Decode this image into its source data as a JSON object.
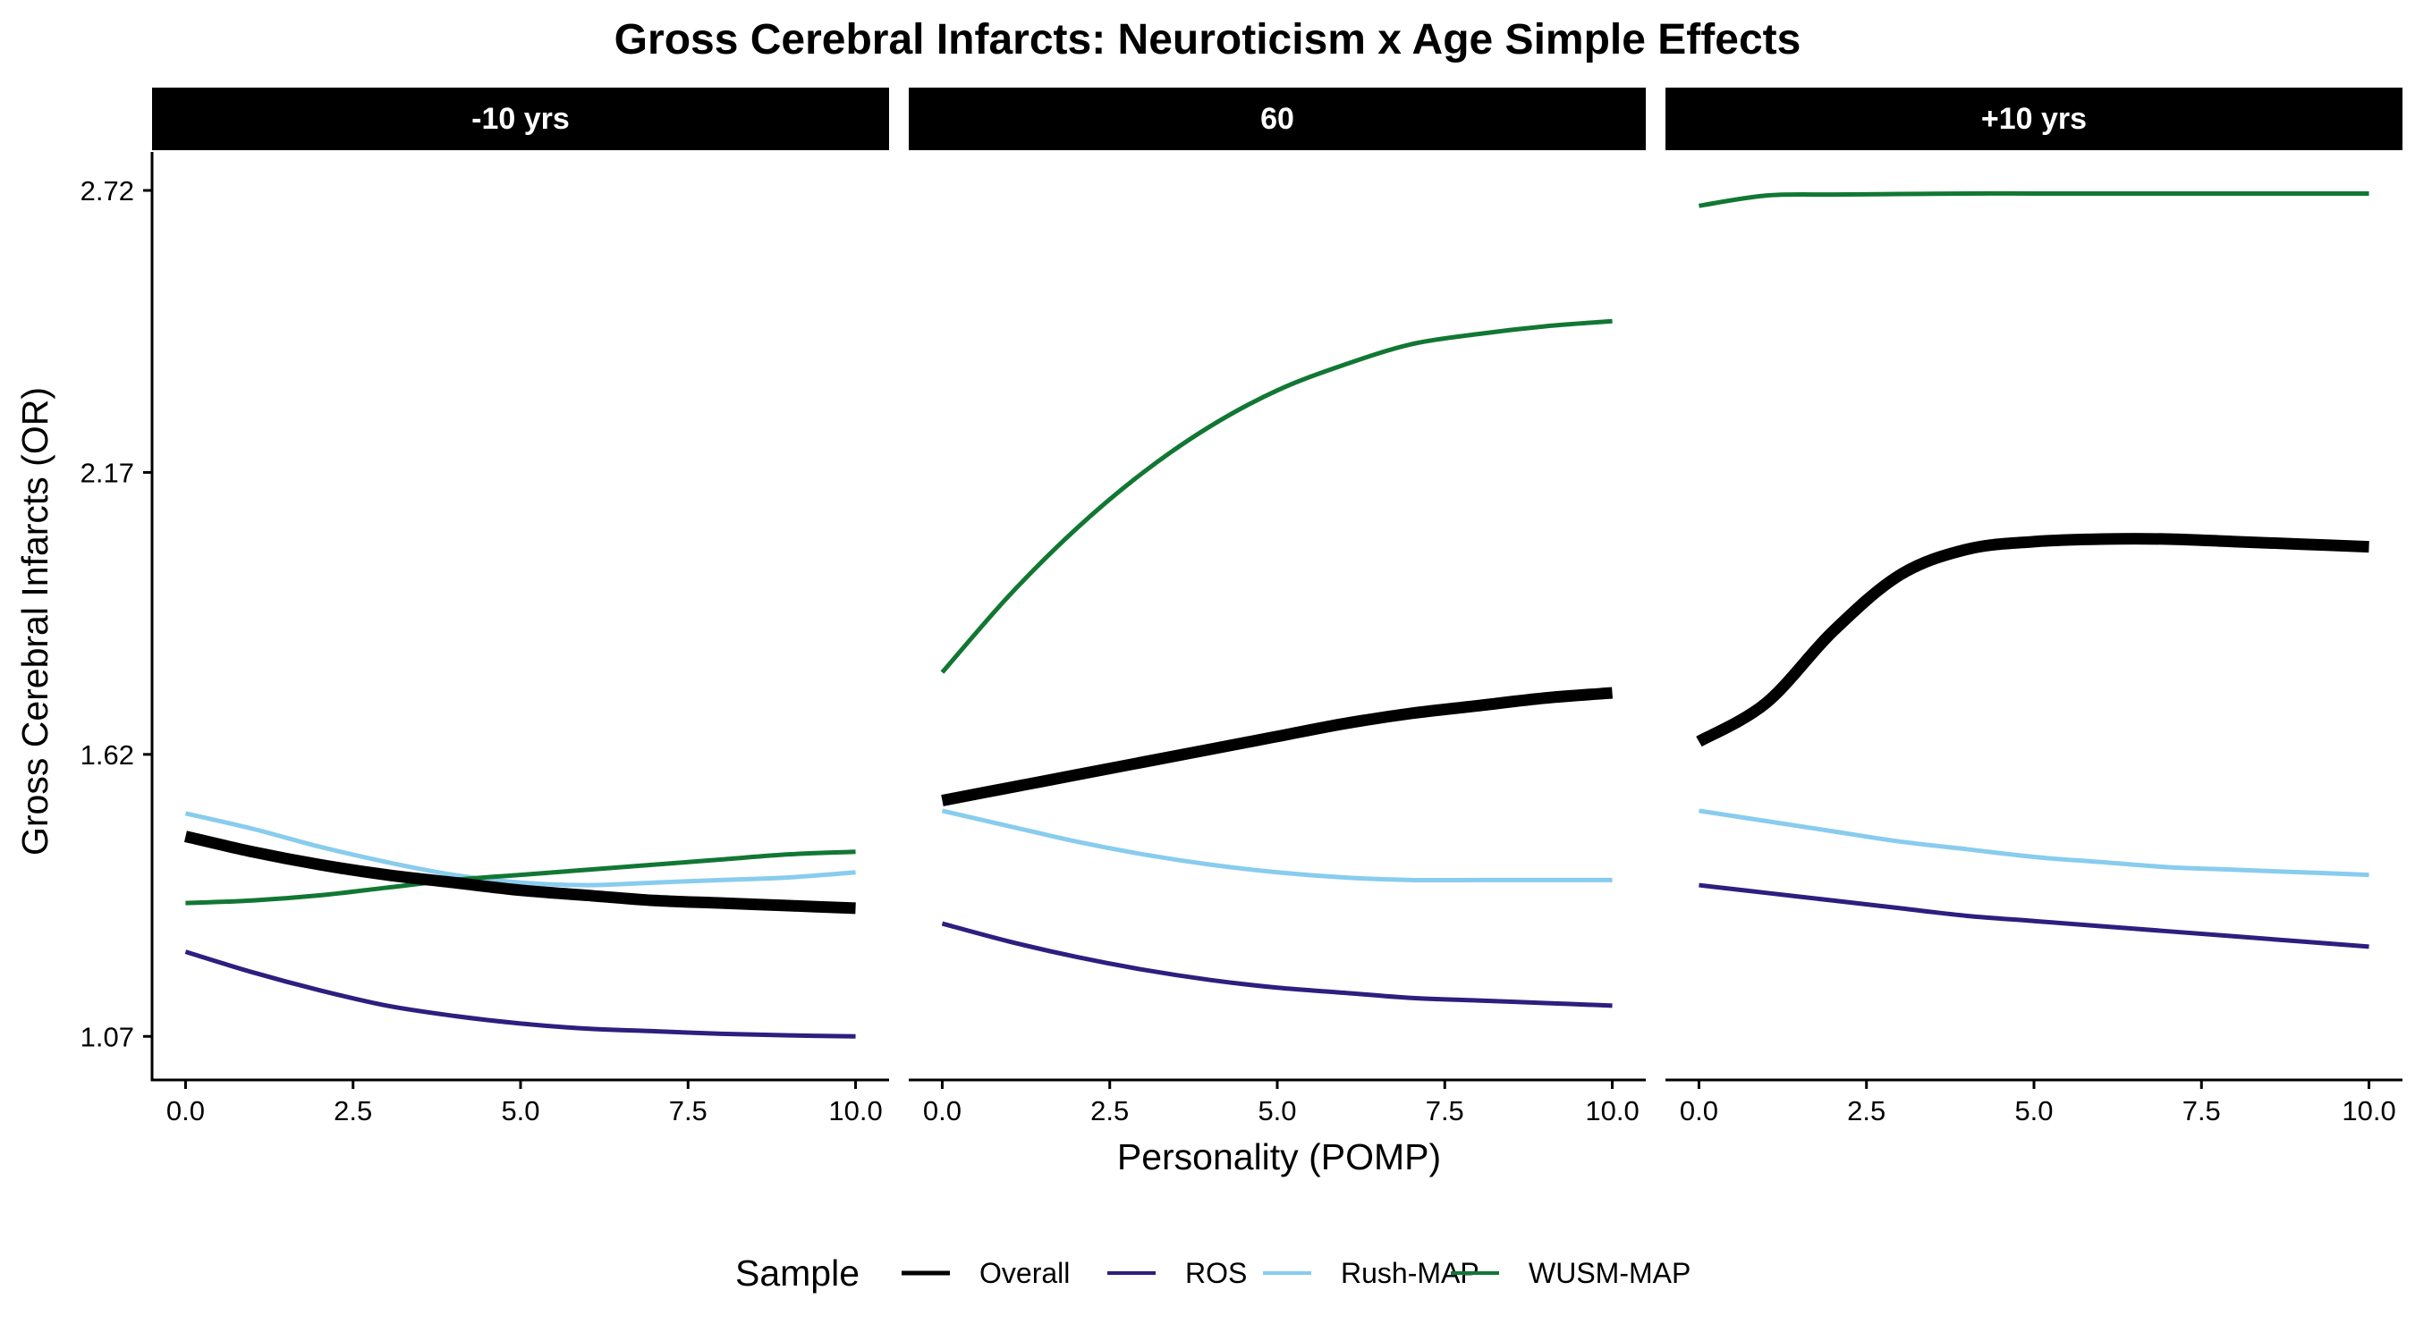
{
  "chart_data": {
    "type": "line",
    "title": "Gross Cerebral Infarcts: Neuroticism x Age Simple Effects",
    "xlabel": "Personality (POMP)",
    "ylabel": "Gross Cerebral Infarcts (OR)",
    "x_ticks": [
      "0.0",
      "2.5",
      "5.0",
      "7.5",
      "10.0"
    ],
    "y_ticks": [
      "1.07",
      "1.62",
      "2.17",
      "2.72"
    ],
    "xlim": [
      -0.5,
      10.5
    ],
    "ylim": [
      0.985,
      2.795
    ],
    "grid": false,
    "legend": {
      "title": "Sample",
      "position": "bottom",
      "entries": [
        "Overall",
        "ROS",
        "Rush-MAP",
        "WUSM-MAP"
      ]
    },
    "x": [
      0,
      1,
      2,
      3,
      4,
      5,
      6,
      7,
      8,
      9,
      10
    ],
    "panels": [
      {
        "label": "-10 yrs",
        "series": [
          {
            "name": "Overall",
            "color": "#000000",
            "values": [
              1.46,
              1.43,
              1.405,
              1.385,
              1.37,
              1.355,
              1.345,
              1.335,
              1.33,
              1.325,
              1.32
            ]
          },
          {
            "name": "ROS",
            "color": "#2d1e7f",
            "values": [
              1.235,
              1.195,
              1.16,
              1.13,
              1.11,
              1.095,
              1.085,
              1.08,
              1.075,
              1.072,
              1.07
            ]
          },
          {
            "name": "Rush-MAP",
            "color": "#88ccee",
            "values": [
              1.505,
              1.475,
              1.44,
              1.41,
              1.385,
              1.37,
              1.365,
              1.37,
              1.375,
              1.38,
              1.39
            ]
          },
          {
            "name": "WUSM-MAP",
            "color": "#117733",
            "values": [
              1.33,
              1.335,
              1.345,
              1.36,
              1.375,
              1.385,
              1.395,
              1.405,
              1.415,
              1.425,
              1.43
            ]
          }
        ]
      },
      {
        "label": "60",
        "series": [
          {
            "name": "Overall",
            "color": "#000000",
            "values": [
              1.53,
              1.555,
              1.58,
              1.605,
              1.63,
              1.655,
              1.68,
              1.7,
              1.715,
              1.73,
              1.74
            ]
          },
          {
            "name": "ROS",
            "color": "#2d1e7f",
            "values": [
              1.29,
              1.255,
              1.225,
              1.2,
              1.18,
              1.165,
              1.155,
              1.145,
              1.14,
              1.135,
              1.13
            ]
          },
          {
            "name": "Rush-MAP",
            "color": "#88ccee",
            "values": [
              1.51,
              1.48,
              1.45,
              1.425,
              1.405,
              1.39,
              1.38,
              1.375,
              1.375,
              1.375,
              1.375
            ]
          },
          {
            "name": "WUSM-MAP",
            "color": "#117733",
            "values": [
              1.78,
              1.93,
              2.06,
              2.17,
              2.26,
              2.33,
              2.38,
              2.42,
              2.44,
              2.455,
              2.465
            ]
          }
        ]
      },
      {
        "label": "+10 yrs",
        "series": [
          {
            "name": "Overall",
            "color": "#000000",
            "values": [
              1.645,
              1.72,
              1.86,
              1.97,
              2.02,
              2.035,
              2.04,
              2.04,
              2.035,
              2.03,
              2.025
            ]
          },
          {
            "name": "ROS",
            "color": "#2d1e7f",
            "values": [
              1.365,
              1.35,
              1.335,
              1.32,
              1.305,
              1.295,
              1.285,
              1.275,
              1.265,
              1.255,
              1.245
            ]
          },
          {
            "name": "Rush-MAP",
            "color": "#88ccee",
            "values": [
              1.51,
              1.49,
              1.47,
              1.45,
              1.435,
              1.42,
              1.41,
              1.4,
              1.395,
              1.39,
              1.385
            ]
          },
          {
            "name": "WUSM-MAP",
            "color": "#117733",
            "values": [
              2.69,
              2.71,
              2.712,
              2.713,
              2.714,
              2.714,
              2.714,
              2.714,
              2.714,
              2.714,
              2.714
            ]
          }
        ]
      }
    ]
  }
}
